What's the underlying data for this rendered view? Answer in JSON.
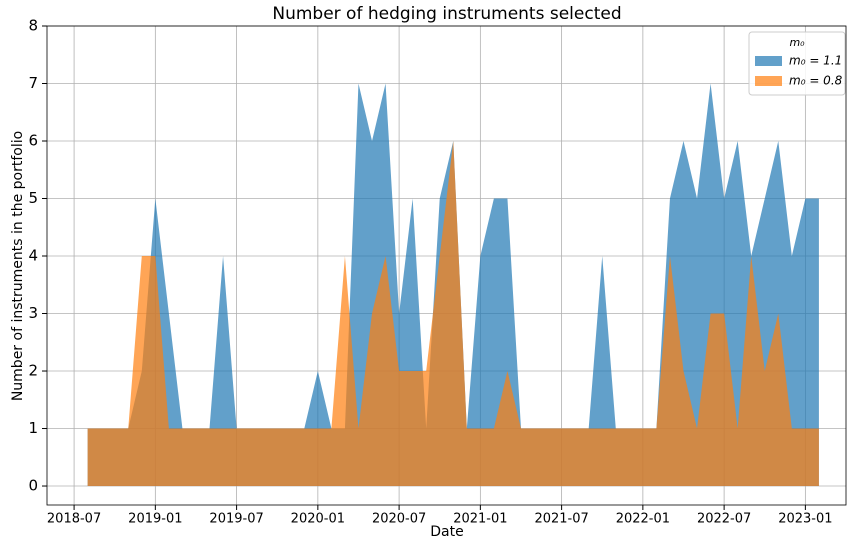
{
  "chart_data": {
    "type": "area",
    "title": "Number of hedging instruments selected",
    "x_label": "Date",
    "y_label": "Number of instruments in the portfolio",
    "legend_title": "m₀",
    "legend": "upper right",
    "grid": true,
    "xlim": [
      "2018-05",
      "2023-04"
    ],
    "xticks": [
      "2018-07",
      "2019-01",
      "2019-07",
      "2020-01",
      "2020-07",
      "2021-01",
      "2021-07",
      "2022-01",
      "2022-07",
      "2023-01"
    ],
    "ylim": [
      -0.33,
      8
    ],
    "yticks": [
      0,
      1,
      2,
      3,
      4,
      5,
      6,
      7,
      8
    ],
    "x": [
      "2018-08",
      "2018-09",
      "2018-10",
      "2018-11",
      "2018-12",
      "2019-01",
      "2019-02",
      "2019-03",
      "2019-04",
      "2019-05",
      "2019-06",
      "2019-07",
      "2019-08",
      "2019-09",
      "2019-10",
      "2019-11",
      "2019-12",
      "2020-01",
      "2020-02",
      "2020-03",
      "2020-04",
      "2020-05",
      "2020-06",
      "2020-07",
      "2020-08",
      "2020-09",
      "2020-10",
      "2020-11",
      "2020-12",
      "2021-01",
      "2021-02",
      "2021-03",
      "2021-04",
      "2021-05",
      "2021-06",
      "2021-07",
      "2021-08",
      "2021-09",
      "2021-10",
      "2021-11",
      "2021-12",
      "2022-01",
      "2022-02",
      "2022-03",
      "2022-04",
      "2022-05",
      "2022-06",
      "2022-07",
      "2022-08",
      "2022-09",
      "2022-10",
      "2022-11",
      "2022-12",
      "2023-01",
      "2023-02"
    ],
    "series": [
      {
        "name": "m₀ = 1.1",
        "color": "#1f77b4",
        "values": [
          1,
          1,
          1,
          1,
          2,
          5,
          3,
          1,
          1,
          1,
          4,
          1,
          1,
          1,
          1,
          1,
          1,
          2,
          1,
          1,
          7,
          6,
          7,
          3,
          5,
          1,
          5,
          6,
          1,
          4,
          5,
          5,
          1,
          1,
          1,
          1,
          1,
          1,
          4,
          1,
          1,
          1,
          1,
          5,
          6,
          5,
          7,
          5,
          6,
          4,
          5,
          6,
          4,
          5,
          5
        ]
      },
      {
        "name": "m₀ = 0.8",
        "color": "#ff7f0e",
        "values": [
          1,
          1,
          1,
          1,
          4,
          4,
          1,
          1,
          1,
          1,
          1,
          1,
          1,
          1,
          1,
          1,
          1,
          1,
          1,
          4,
          1,
          3,
          4,
          2,
          2,
          2,
          4,
          6,
          1,
          1,
          1,
          2,
          1,
          1,
          1,
          1,
          1,
          1,
          1,
          1,
          1,
          1,
          1,
          4,
          2,
          1,
          3,
          3,
          1,
          4,
          2,
          3,
          1,
          1,
          1
        ]
      }
    ]
  }
}
